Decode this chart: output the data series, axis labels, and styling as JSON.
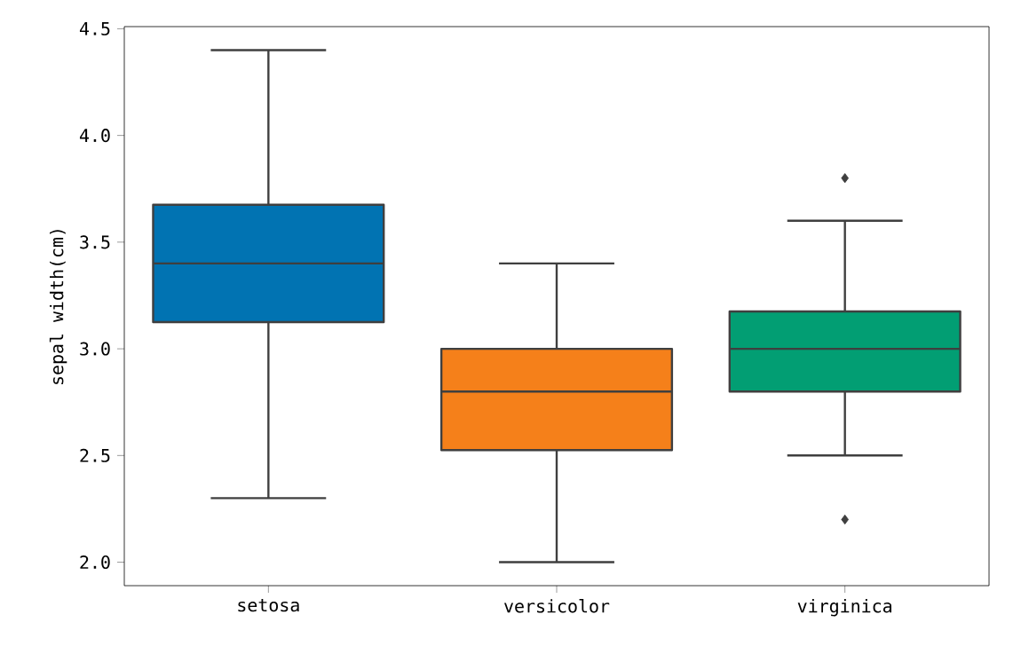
{
  "chart_data": {
    "type": "box",
    "ylabel": "sepal width(cm)",
    "categories": [
      "setosa",
      "versicolor",
      "virginica"
    ],
    "colors": [
      "#0173b2",
      "#f5801a",
      "#029e73"
    ],
    "boxes": [
      {
        "low": 2.3,
        "q1": 3.125,
        "median": 3.4,
        "q3": 3.675,
        "high": 4.4
      },
      {
        "low": 2.0,
        "q1": 2.525,
        "median": 2.8,
        "q3": 3.0,
        "high": 3.4
      },
      {
        "low": 2.5,
        "q1": 2.8,
        "median": 3.0,
        "q3": 3.175,
        "high": 3.6,
        "outliers": [
          3.8,
          2.2
        ]
      }
    ],
    "marker": "diamond",
    "ylim": [
      1.89,
      4.51
    ],
    "yticks": [
      {
        "value": 2.0,
        "label": "2.0"
      },
      {
        "value": 2.5,
        "label": "2.5"
      },
      {
        "value": 3.0,
        "label": "3.0"
      },
      {
        "value": 3.5,
        "label": "3.5"
      },
      {
        "value": 4.0,
        "label": "4.0"
      },
      {
        "value": 4.5,
        "label": "4.5"
      }
    ]
  }
}
